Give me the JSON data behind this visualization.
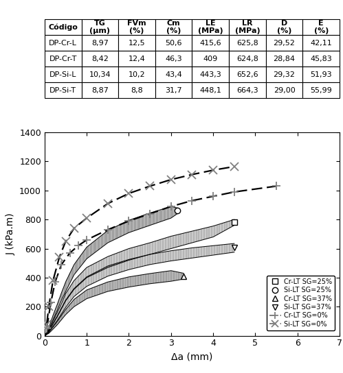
{
  "table": {
    "col_widths": [
      0.18,
      0.11,
      0.11,
      0.11,
      0.12,
      0.12,
      0.12,
      0.13
    ],
    "headers": [
      "Código",
      "TG\n(μm)",
      "FVm\n(%)",
      "Cm\n(%)",
      "LE\n(MPa)",
      "LR\n(MPa)",
      "D\n(%)",
      "E\n(%)"
    ],
    "rows": [
      [
        "DP-Cr-L",
        "8,97",
        "12,5",
        "50,6",
        "415,6",
        "625,8",
        "29,52",
        "42,11"
      ],
      [
        "DP-Cr-T",
        "8,42",
        "12,4",
        "46,3",
        "409",
        "624,8",
        "28,84",
        "45,83"
      ],
      [
        "DP-Si-L",
        "10,34",
        "10,2",
        "43,4",
        "443,3",
        "652,6",
        "29,32",
        "51,93"
      ],
      [
        "DP-Si-T",
        "8,87",
        "8,8",
        "31,7",
        "448,1",
        "664,3",
        "29,00",
        "55,99"
      ]
    ]
  },
  "chart": {
    "xlabel": "Δa (mm)",
    "ylabel": "J (kPa.m)",
    "xlim": [
      0,
      7
    ],
    "ylim": [
      0,
      1400
    ],
    "xticks": [
      0,
      1,
      2,
      3,
      4,
      5,
      6,
      7
    ],
    "yticks": [
      0,
      200,
      400,
      600,
      800,
      1000,
      1200,
      1400
    ],
    "legend_entries": [
      {
        "label": "Cr-LT SG=25%",
        "marker": "s"
      },
      {
        "label": "Si-LT SG=25%",
        "marker": "o"
      },
      {
        "label": "Cr-LT SG=37%",
        "marker": "^"
      },
      {
        "label": "Si-LT SG=37%",
        "marker": "v"
      },
      {
        "label": "Cr-LT SG=0%",
        "marker": "+"
      },
      {
        "label": "Si-LT SG=0%",
        "marker": "x"
      }
    ],
    "envelopes": [
      {
        "name": "Cr-LT SG=25%",
        "marker": "s",
        "x": [
          0.01,
          0.05,
          0.1,
          0.2,
          0.3,
          0.4,
          0.5,
          0.7,
          1.0,
          1.5,
          2.0,
          2.5,
          3.0,
          3.5,
          4.0,
          4.5
        ],
        "yl": [
          0,
          15,
          30,
          80,
          130,
          185,
          240,
          320,
          400,
          470,
          520,
          560,
          600,
          640,
          680,
          760
        ],
        "yu": [
          0,
          20,
          40,
          100,
          160,
          220,
          290,
          380,
          470,
          545,
          600,
          640,
          685,
          720,
          755,
          800
        ]
      },
      {
        "name": "Si-LT SG=25%",
        "marker": "o",
        "x": [
          0.01,
          0.05,
          0.1,
          0.2,
          0.3,
          0.4,
          0.5,
          0.7,
          1.0,
          1.5,
          2.0,
          2.5,
          3.0,
          3.15
        ],
        "yl": [
          0,
          20,
          40,
          110,
          175,
          245,
          305,
          420,
          530,
          640,
          710,
          760,
          810,
          840
        ],
        "yu": [
          0,
          25,
          55,
          140,
          215,
          295,
          370,
          490,
          610,
          725,
          795,
          845,
          890,
          880
        ]
      },
      {
        "name": "Si-LT SG=37%",
        "marker": "v",
        "x": [
          0.01,
          0.05,
          0.1,
          0.2,
          0.3,
          0.4,
          0.5,
          0.7,
          1.0,
          1.5,
          2.0,
          2.5,
          3.0,
          3.5,
          4.0,
          4.5
        ],
        "yl": [
          0,
          12,
          25,
          65,
          105,
          150,
          195,
          270,
          340,
          410,
          455,
          490,
          515,
          535,
          555,
          575
        ],
        "yu": [
          0,
          16,
          33,
          85,
          135,
          190,
          245,
          325,
          405,
          480,
          525,
          560,
          585,
          605,
          620,
          635
        ]
      },
      {
        "name": "Cr-LT SG=37%",
        "marker": "^",
        "x": [
          0.01,
          0.05,
          0.1,
          0.2,
          0.3,
          0.4,
          0.5,
          0.7,
          1.0,
          1.5,
          2.0,
          2.5,
          3.0,
          3.3
        ],
        "yl": [
          0,
          8,
          16,
          45,
          75,
          110,
          145,
          200,
          255,
          305,
          335,
          358,
          375,
          390
        ],
        "yu": [
          0,
          10,
          22,
          60,
          97,
          140,
          180,
          250,
          315,
          370,
          405,
          428,
          448,
          430
        ]
      }
    ],
    "dashed_curves": [
      {
        "name": "Cr-LT SG=0%",
        "marker": "+",
        "x": [
          0.05,
          0.15,
          0.25,
          0.4,
          0.6,
          0.8,
          1.0,
          1.5,
          2.0,
          2.5,
          3.0,
          3.5,
          4.0,
          4.5,
          5.5
        ],
        "y": [
          50,
          230,
          370,
          490,
          570,
          620,
          660,
          730,
          790,
          840,
          890,
          930,
          960,
          990,
          1030
        ]
      },
      {
        "name": "Si-LT SG=0%",
        "marker": "x",
        "x": [
          0.05,
          0.1,
          0.2,
          0.35,
          0.5,
          0.7,
          1.0,
          1.5,
          2.0,
          2.5,
          3.0,
          3.5,
          4.0,
          4.5
        ],
        "y": [
          80,
          200,
          380,
          540,
          650,
          740,
          810,
          910,
          980,
          1030,
          1075,
          1110,
          1140,
          1165
        ]
      }
    ]
  }
}
